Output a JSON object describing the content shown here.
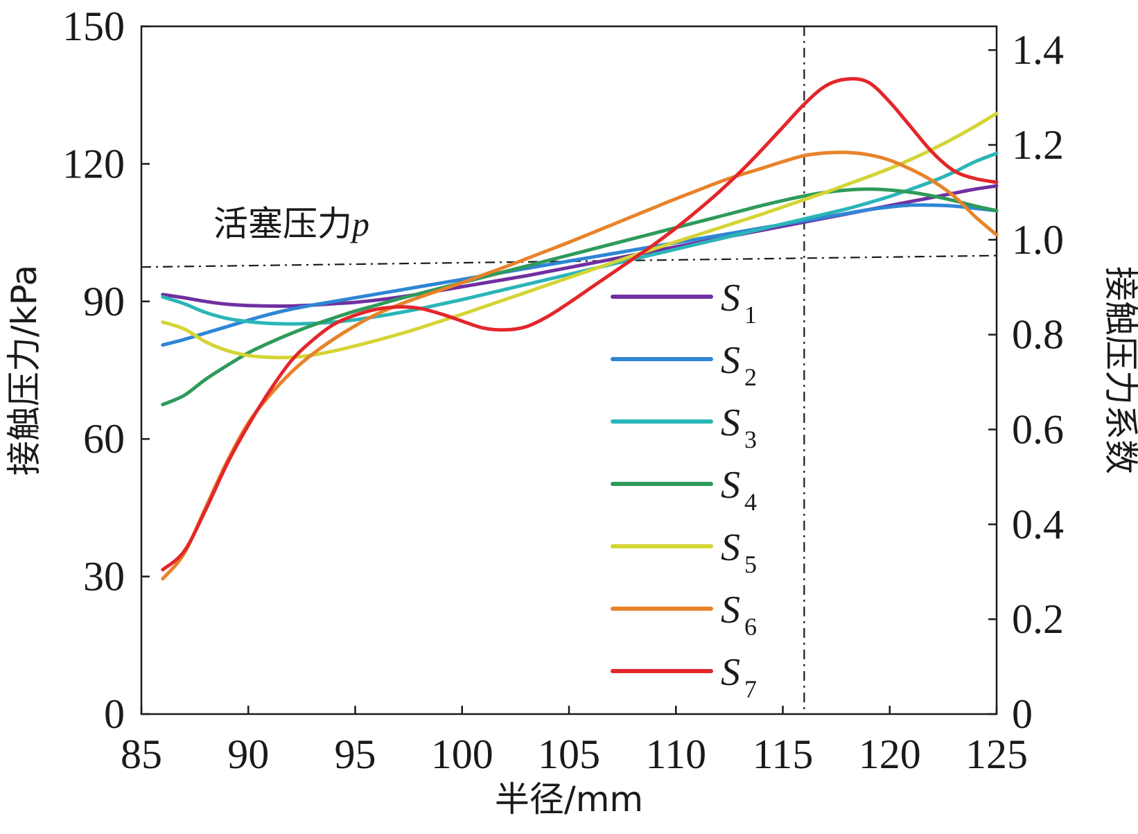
{
  "chart_data": {
    "type": "line",
    "xlabel": "半径/mm",
    "ylabel": "接触压力/kPa",
    "y2label": "接触压力系数",
    "xlim": [
      85,
      125
    ],
    "ylim": [
      0,
      150
    ],
    "y2lim": [
      0,
      1.45
    ],
    "xticks": [
      "85",
      "90",
      "95",
      "100",
      "105",
      "110",
      "115",
      "120",
      "125"
    ],
    "yticks": [
      "0",
      "30",
      "60",
      "90",
      "120",
      "150"
    ],
    "y2ticks": [
      "0",
      "0.2",
      "0.4",
      "0.6",
      "0.8",
      "1.0",
      "1.2",
      "1.4"
    ],
    "grid": false,
    "legend_position": "center-right",
    "annotation": {
      "text_main": "活塞压力",
      "text_var": "p",
      "piston_line": {
        "x": [
          85,
          125
        ],
        "y": [
          97.5,
          100
        ]
      },
      "vertical_line_x": 116
    },
    "x": [
      86,
      87,
      88,
      89,
      90,
      91,
      92,
      93,
      94,
      95,
      96,
      97,
      98,
      99,
      100,
      101,
      102,
      103,
      104,
      105,
      106,
      107,
      108,
      109,
      110,
      111,
      112,
      113,
      114,
      115,
      116,
      117,
      118,
      119,
      120,
      121,
      122,
      123,
      124,
      125
    ],
    "series": [
      {
        "name": "S",
        "sub": "1",
        "color": "#7030a0",
        "values": [
          91.5,
          90.8,
          90.0,
          89.4,
          89.1,
          89.0,
          89.0,
          89.2,
          89.5,
          89.8,
          90.3,
          90.9,
          91.6,
          92.4,
          93.2,
          94.0,
          94.8,
          95.6,
          96.5,
          97.4,
          98.3,
          99.2,
          100.1,
          101.0,
          101.9,
          102.8,
          103.7,
          104.6,
          105.5,
          106.4,
          107.3,
          108.2,
          109.1,
          110.0,
          110.9,
          111.8,
          112.7,
          113.6,
          114.5,
          115.2
        ]
      },
      {
        "name": "S",
        "sub": "2",
        "color": "#2e86d4",
        "values": [
          80.5,
          81.7,
          83.1,
          84.5,
          85.9,
          87.2,
          88.3,
          89.2,
          90.0,
          90.8,
          91.6,
          92.4,
          93.2,
          94.0,
          94.8,
          95.6,
          96.4,
          97.2,
          98.0,
          98.8,
          99.6,
          100.4,
          101.2,
          102.0,
          102.8,
          103.6,
          104.4,
          105.2,
          106.0,
          106.8,
          107.6,
          108.4,
          109.2,
          110.0,
          110.6,
          111.0,
          111.0,
          110.8,
          110.3,
          109.8
        ]
      },
      {
        "name": "S",
        "sub": "3",
        "color": "#2ab5b8",
        "values": [
          91.0,
          89.5,
          87.6,
          86.3,
          85.6,
          85.2,
          85.1,
          85.2,
          85.5,
          86.0,
          86.7,
          87.5,
          88.4,
          89.4,
          90.4,
          91.5,
          92.6,
          93.7,
          94.8,
          95.9,
          97.0,
          98.1,
          99.2,
          100.3,
          101.4,
          102.5,
          103.6,
          104.7,
          105.8,
          106.9,
          108.0,
          109.1,
          110.2,
          111.5,
          112.9,
          114.5,
          116.2,
          118.2,
          120.5,
          122.3
        ]
      },
      {
        "name": "S",
        "sub": "4",
        "color": "#2f9a5a",
        "values": [
          67.5,
          69.5,
          73.0,
          76.0,
          78.8,
          81.0,
          83.0,
          84.8,
          86.4,
          87.9,
          89.2,
          90.5,
          91.7,
          92.9,
          94.1,
          95.3,
          96.5,
          97.7,
          98.9,
          100.1,
          101.3,
          102.5,
          103.7,
          104.9,
          106.1,
          107.3,
          108.5,
          109.7,
          110.9,
          112.0,
          113.0,
          113.8,
          114.3,
          114.5,
          114.3,
          113.8,
          113.0,
          112.0,
          110.8,
          109.8
        ]
      },
      {
        "name": "S",
        "sub": "5",
        "color": "#d4d435",
        "values": [
          85.5,
          84.0,
          81.2,
          79.3,
          78.2,
          77.8,
          77.8,
          78.3,
          79.2,
          80.3,
          81.5,
          82.8,
          84.2,
          85.7,
          87.2,
          88.8,
          90.4,
          92.0,
          93.6,
          95.2,
          96.8,
          98.4,
          100.0,
          101.5,
          103.0,
          104.5,
          106.0,
          107.5,
          109.0,
          110.6,
          112.2,
          113.8,
          115.5,
          117.2,
          119.0,
          121.0,
          123.2,
          125.6,
          128.2,
          131.0
        ]
      },
      {
        "name": "S",
        "sub": "6",
        "color": "#e8832a",
        "values": [
          29.5,
          35.0,
          45.0,
          55.0,
          63.5,
          69.5,
          74.5,
          78.5,
          81.8,
          84.7,
          87.2,
          89.2,
          90.9,
          92.5,
          94.1,
          95.8,
          97.5,
          99.3,
          101.1,
          102.9,
          104.8,
          106.7,
          108.6,
          110.5,
          112.4,
          114.2,
          116.0,
          117.6,
          119.0,
          120.5,
          121.8,
          122.4,
          122.5,
          122.0,
          120.8,
          118.8,
          116.3,
          113.0,
          108.5,
          104.5
        ]
      },
      {
        "name": "S",
        "sub": "7",
        "color": "#e3262a",
        "values": [
          31.5,
          35.5,
          44.5,
          54.5,
          63.0,
          70.5,
          77.0,
          81.5,
          85.0,
          87.0,
          88.3,
          88.8,
          88.5,
          87.3,
          85.7,
          84.2,
          83.8,
          84.5,
          86.7,
          89.7,
          92.9,
          96.1,
          99.3,
          102.5,
          106.0,
          109.8,
          113.8,
          118.2,
          123.0,
          128.0,
          133.0,
          137.0,
          138.5,
          137.8,
          133.5,
          128.0,
          122.5,
          118.5,
          116.8,
          116.0
        ]
      }
    ]
  }
}
